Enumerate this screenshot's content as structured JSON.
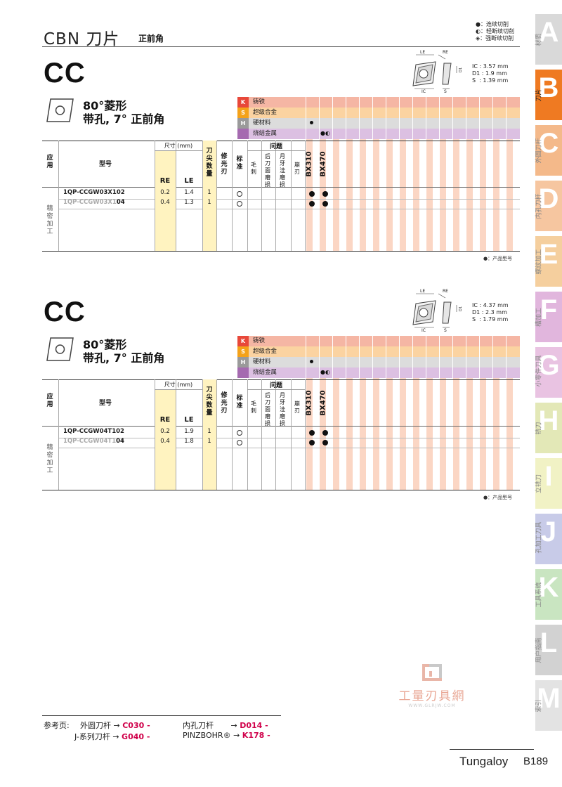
{
  "header": {
    "title": "CBN 刀片",
    "subtitle": "正前角",
    "legend": [
      "●：连续切削",
      "◐：轻断续切削",
      "◈：强断续切削"
    ]
  },
  "sections": [
    {
      "code": "CC",
      "shape": "80°菱形",
      "hole": "带孔, 7° 正前角",
      "spec": [
        "IC : 3.57 mm",
        "D1 : 1.9 mm",
        "S  : 1.39 mm"
      ],
      "rows": [
        {
          "model": "1QP-CCGW03X102",
          "model_prefix": "",
          "model_suffix": "",
          "re": "0.2",
          "le": "1.4",
          "n": "1"
        },
        {
          "model": "",
          "model_prefix": "1QP-CCGW03X1",
          "model_suffix": "04",
          "re": "0.4",
          "le": "1.3",
          "n": "1"
        }
      ]
    },
    {
      "code": "CC",
      "shape": "80°菱形",
      "hole": "带孔, 7° 正前角",
      "spec": [
        "IC : 4.37 mm",
        "D1 : 2.3 mm",
        "S  : 1.79 mm"
      ],
      "rows": [
        {
          "model": "1QP-CCGW04T102",
          "model_prefix": "",
          "model_suffix": "",
          "re": "0.2",
          "le": "1.9",
          "n": "1"
        },
        {
          "model": "",
          "model_prefix": "1QP-CCGW04T1",
          "model_suffix": "04",
          "re": "0.4",
          "le": "1.8",
          "n": "1"
        }
      ]
    }
  ],
  "materials": [
    {
      "letter": "K",
      "name": "铸铁",
      "color": "#e8483a",
      "bg": "#f5b6a4"
    },
    {
      "letter": "S",
      "name": "超级合金",
      "color": "#f4a21a",
      "bg": "#fbd3a1"
    },
    {
      "letter": "H",
      "name": "硬材料",
      "color": "#9a9a9a",
      "bg": "#dcdcdc"
    },
    {
      "letter": "",
      "name": "烧结金属",
      "color": "#a56ab0",
      "bg": "#dcc0e2"
    }
  ],
  "table_headers": {
    "app": "应用",
    "model": "型号",
    "size": "尺寸 (mm)",
    "re": "RE",
    "le": "LE",
    "edges": "刀尖数量",
    "wiper": "修光刃",
    "std": "标准",
    "problem": "问题",
    "burr": "毛刺",
    "flank": "后刀面磨损",
    "crater": "月牙洼磨损",
    "chip": "崩刃",
    "grade1": "BX310",
    "grade2": "BX470",
    "app_value": "精密加工"
  },
  "product_note": "●：产品型号",
  "diagram_labels": {
    "le": "LE",
    "re": "RE",
    "ic": "IC",
    "s": "S",
    "d1": "D1"
  },
  "tabs": [
    {
      "letter": "A",
      "label": "材质",
      "color": "#d9d9d9",
      "active": false
    },
    {
      "letter": "B",
      "label": "刀片",
      "color": "#ef7a22",
      "active": true
    },
    {
      "letter": "C",
      "label": "外圆刀杆",
      "color": "#f4b98a",
      "active": false
    },
    {
      "letter": "D",
      "label": "内孔刀杆",
      "color": "#f6c6a0",
      "active": false
    },
    {
      "letter": "E",
      "label": "螺纹加工",
      "color": "#f5cf9e",
      "active": false
    },
    {
      "letter": "F",
      "label": "槽加工",
      "color": "#e1b6dd",
      "active": false
    },
    {
      "letter": "G",
      "label": "小零件刀具",
      "color": "#e9c3e2",
      "active": false
    },
    {
      "letter": "H",
      "label": "铣刀",
      "color": "#e3e8b7",
      "active": false
    },
    {
      "letter": "I",
      "label": "立铣刀",
      "color": "#f1f2c5",
      "active": false
    },
    {
      "letter": "J",
      "label": "孔加工刀具",
      "color": "#c8cbe8",
      "active": false
    },
    {
      "letter": "K",
      "label": "工具系统",
      "color": "#c9e5c1",
      "active": false
    },
    {
      "letter": "L",
      "label": "用户指南",
      "color": "#d2d2d2",
      "active": false
    },
    {
      "letter": "M",
      "label": "索引",
      "color": "#e3e3e3",
      "active": false
    }
  ],
  "references": {
    "label": "参考页:",
    "items": [
      {
        "name": "外圆刀杆",
        "page": "C030 -"
      },
      {
        "name": "内孔刀杆",
        "page": "D014 -"
      },
      {
        "name": "J-系列刀杆",
        "page": "G040 -"
      },
      {
        "name": "PINZBOHR®",
        "page": "K178 -"
      }
    ]
  },
  "watermark": {
    "text": "工量刃具網",
    "url": "WWW.GLRJW.COM"
  },
  "footer": {
    "brand": "Tungaloy",
    "page": "B189"
  },
  "colors": {
    "accent": "#ef7a22",
    "ref": "#d0004a",
    "yellow": "#fff5c4"
  }
}
